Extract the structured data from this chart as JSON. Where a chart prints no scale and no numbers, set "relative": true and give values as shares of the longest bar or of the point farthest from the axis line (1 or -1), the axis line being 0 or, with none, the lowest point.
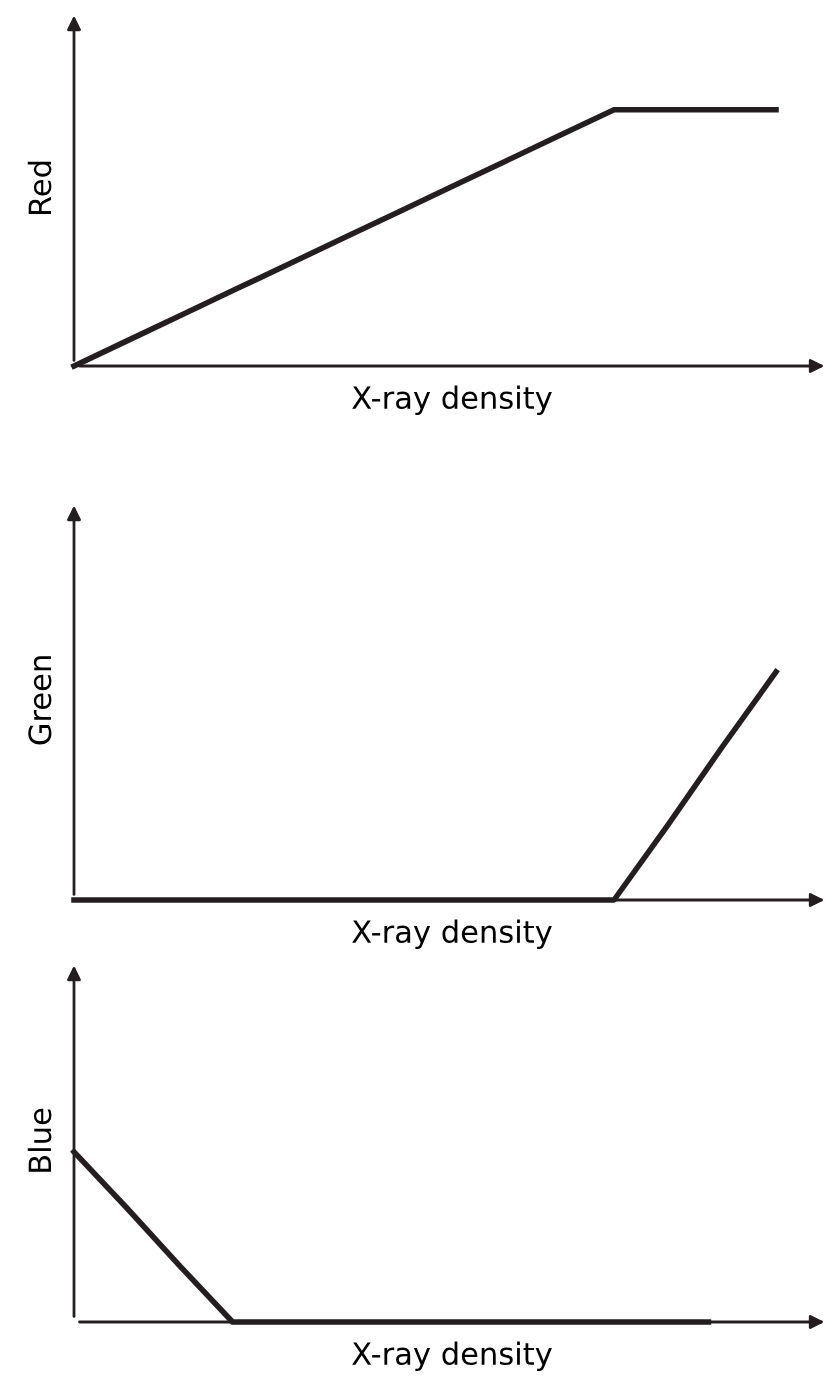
{
  "chart_data": [
    {
      "type": "line",
      "relative": true,
      "xlabel": "X-ray density",
      "ylabel": "Red",
      "categories": [
        null,
        null,
        null,
        null,
        null,
        null,
        null,
        null,
        null,
        null,
        null,
        null,
        null,
        null
      ],
      "series": [
        {
          "color": "#231f20",
          "values": [
            0,
            0.1,
            0.2,
            0.3,
            0.4,
            0.5,
            0.6,
            0.7,
            0.8,
            0.9,
            1,
            1,
            1,
            1
          ]
        }
      ]
    },
    {
      "type": "line",
      "relative": true,
      "xlabel": "X-ray density",
      "ylabel": "Green",
      "categories": [
        null,
        null,
        null,
        null,
        null,
        null,
        null,
        null,
        null,
        null,
        null,
        null,
        null,
        null
      ],
      "series": [
        {
          "color": "#231f20",
          "values": [
            0,
            0,
            0,
            0,
            0,
            0,
            0,
            0,
            0,
            0,
            0,
            0.33,
            0.67,
            1
          ]
        }
      ]
    },
    {
      "type": "line",
      "relative": true,
      "xlabel": "X-ray density",
      "ylabel": "Blue",
      "categories": [
        null,
        null,
        null,
        null,
        null,
        null,
        null,
        null,
        null,
        null,
        null,
        null,
        null
      ],
      "series": [
        {
          "color": "#231f20",
          "values": [
            1,
            0.67,
            0.33,
            0,
            0,
            0,
            0,
            0,
            0,
            0,
            0,
            0,
            0
          ]
        }
      ]
    }
  ]
}
